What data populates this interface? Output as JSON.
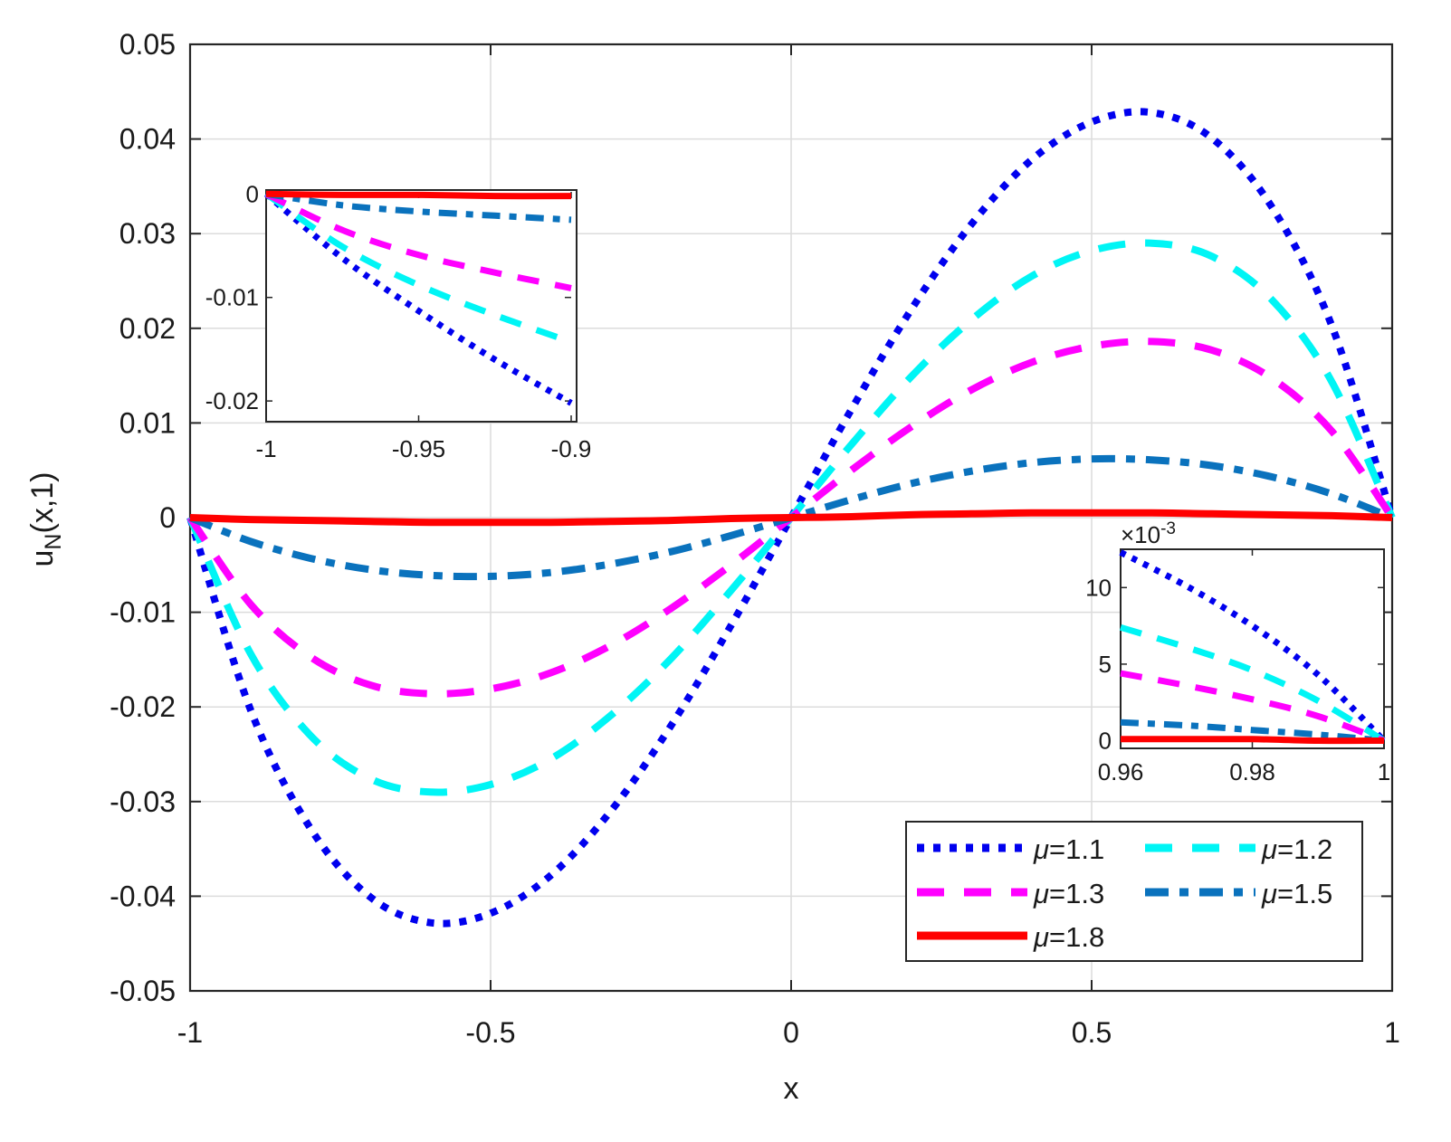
{
  "chart_data": {
    "type": "line",
    "xlabel": "x",
    "ylabel": "u",
    "ylabel_sub": "N",
    "ylabel_rest": "(x,1)",
    "xlim": [
      -1,
      1
    ],
    "ylim": [
      -0.05,
      0.05
    ],
    "x_ticks": [
      -1,
      -0.5,
      0,
      0.5,
      1
    ],
    "x_tick_labels": [
      "-1",
      "-0.5",
      "0",
      "0.5",
      "1"
    ],
    "y_ticks": [
      -0.05,
      -0.04,
      -0.03,
      -0.02,
      -0.01,
      0,
      0.01,
      0.02,
      0.03,
      0.04,
      0.05
    ],
    "y_tick_labels": [
      "-0.05",
      "-0.04",
      "-0.03",
      "-0.02",
      "-0.01",
      "0",
      "0.01",
      "0.02",
      "0.03",
      "0.04",
      "0.05"
    ],
    "grid": true,
    "legend_location": "bottom-right",
    "series": [
      {
        "name": "μ=1.1",
        "greek": "μ",
        "value_label": "=1.1",
        "color": "#0000ee",
        "style": "dotted",
        "x": [
          -1,
          -0.9,
          -0.8,
          -0.7,
          -0.6,
          -0.5,
          -0.4,
          -0.3,
          -0.2,
          -0.1,
          0,
          0.1,
          0.2,
          0.3,
          0.4,
          0.5,
          0.6,
          0.7,
          0.8,
          0.9,
          1
        ],
        "y": [
          0,
          -0.0202,
          -0.0328,
          -0.0401,
          -0.0428,
          -0.0418,
          -0.0378,
          -0.031,
          -0.022,
          -0.0114,
          0,
          0.0114,
          0.022,
          0.031,
          0.0378,
          0.0418,
          0.0428,
          0.0401,
          0.0328,
          0.0202,
          0
        ]
      },
      {
        "name": "μ=1.2",
        "greek": "μ",
        "value_label": "=1.2",
        "color": "#00f5f5",
        "style": "dashed",
        "x": [
          -1,
          -0.9,
          -0.8,
          -0.7,
          -0.6,
          -0.5,
          -0.4,
          -0.3,
          -0.2,
          -0.1,
          0,
          0.1,
          0.2,
          0.3,
          0.4,
          0.5,
          0.6,
          0.7,
          0.8,
          0.9,
          1
        ],
        "y": [
          0,
          -0.0143,
          -0.023,
          -0.0276,
          -0.029,
          -0.0282,
          -0.0255,
          -0.0209,
          -0.0149,
          -0.0077,
          0,
          0.0077,
          0.0149,
          0.0209,
          0.0255,
          0.0282,
          0.029,
          0.0276,
          0.023,
          0.0143,
          0
        ]
      },
      {
        "name": "μ=1.3",
        "greek": "μ",
        "value_label": "=1.3",
        "color": "#ff00ff",
        "style": "dashed",
        "x": [
          -1,
          -0.9,
          -0.8,
          -0.7,
          -0.6,
          -0.5,
          -0.4,
          -0.3,
          -0.2,
          -0.1,
          0,
          0.1,
          0.2,
          0.3,
          0.4,
          0.5,
          0.6,
          0.7,
          0.8,
          0.9,
          1
        ],
        "y": [
          0,
          -0.0091,
          -0.0147,
          -0.0177,
          -0.0186,
          -0.0181,
          -0.0164,
          -0.0135,
          -0.0096,
          -0.005,
          0,
          0.005,
          0.0096,
          0.0135,
          0.0164,
          0.0181,
          0.0186,
          0.0177,
          0.0147,
          0.0091,
          0
        ]
      },
      {
        "name": "μ=1.5",
        "greek": "μ",
        "value_label": "=1.5",
        "color": "#0a72bd",
        "style": "dashdot",
        "x": [
          -1,
          -0.9,
          -0.8,
          -0.7,
          -0.6,
          -0.5,
          -0.4,
          -0.3,
          -0.2,
          -0.1,
          0,
          0.1,
          0.2,
          0.3,
          0.4,
          0.5,
          0.6,
          0.7,
          0.8,
          0.9,
          1
        ],
        "y": [
          0,
          -0.0025,
          -0.0043,
          -0.0055,
          -0.0061,
          -0.0062,
          -0.0058,
          -0.0049,
          -0.0036,
          -0.0019,
          0,
          0.0019,
          0.0036,
          0.0049,
          0.0058,
          0.0062,
          0.0061,
          0.0055,
          0.0043,
          0.0025,
          0
        ]
      },
      {
        "name": "μ=1.8",
        "greek": "μ",
        "value_label": "=1.8",
        "color": "#ff0000",
        "style": "solid",
        "x": [
          -1,
          -0.9,
          -0.8,
          -0.7,
          -0.6,
          -0.5,
          -0.4,
          -0.3,
          -0.2,
          -0.1,
          0,
          0.1,
          0.2,
          0.3,
          0.4,
          0.5,
          0.6,
          0.7,
          0.8,
          0.9,
          1
        ],
        "y": [
          0,
          -0.0002,
          -0.0003,
          -0.0004,
          -0.0005,
          -0.0005,
          -0.0005,
          -0.0004,
          -0.0003,
          -0.0001,
          0,
          0.0001,
          0.0003,
          0.0004,
          0.0005,
          0.0005,
          0.0005,
          0.0004,
          0.0003,
          0.0002,
          0
        ]
      }
    ],
    "insets": [
      {
        "id": "left",
        "xlim": [
          -1,
          -0.9
        ],
        "ylim": [
          -0.022,
          0.0002
        ],
        "x_ticks": [
          -1,
          -0.95,
          -0.9
        ],
        "x_tick_labels": [
          "-1",
          "-0.95",
          "-0.9"
        ],
        "y_ticks": [
          0,
          -0.01,
          -0.02
        ],
        "y_tick_labels": [
          "0",
          "-0.01",
          "-0.02"
        ],
        "series": [
          {
            "x": [
              -1,
              -0.975,
              -0.95,
              -0.925,
              -0.9
            ],
            "y": [
              0,
              -0.0062,
              -0.0113,
              -0.016,
              -0.0202
            ]
          },
          {
            "x": [
              -1,
              -0.975,
              -0.95,
              -0.925,
              -0.9
            ],
            "y": [
              0,
              -0.0051,
              -0.0088,
              -0.0117,
              -0.0143
            ]
          },
          {
            "x": [
              -1,
              -0.975,
              -0.95,
              -0.925,
              -0.9
            ],
            "y": [
              0,
              -0.0035,
              -0.0059,
              -0.0076,
              -0.0091
            ]
          },
          {
            "x": [
              -1,
              -0.975,
              -0.95,
              -0.925,
              -0.9
            ],
            "y": [
              0,
              -0.0011,
              -0.0017,
              -0.0021,
              -0.0025
            ]
          },
          {
            "x": [
              -1,
              -0.975,
              -0.95,
              -0.925,
              -0.9
            ],
            "y": [
              0,
              -0.0001,
              -0.0001,
              -0.0002,
              -0.0002
            ]
          }
        ]
      },
      {
        "id": "right",
        "xlim": [
          0.96,
          1
        ],
        "ylim": [
          -0.0005,
          0.0125
        ],
        "x_ticks": [
          0.96,
          0.98,
          1
        ],
        "x_tick_labels": [
          "0.96",
          "0.98",
          "1"
        ],
        "y_ticks": [
          0,
          0.005,
          0.01
        ],
        "y_tick_labels": [
          "0",
          "5",
          "10"
        ],
        "exponent_base": "×10",
        "exponent_power": "-3",
        "series": [
          {
            "x": [
              0.96,
              0.97,
              0.98,
              0.99,
              1
            ],
            "y": [
              0.0123,
              0.0101,
              0.0075,
              0.0043,
              0
            ]
          },
          {
            "x": [
              0.96,
              0.97,
              0.98,
              0.99,
              1
            ],
            "y": [
              0.0074,
              0.0061,
              0.0046,
              0.0026,
              0
            ]
          },
          {
            "x": [
              0.96,
              0.97,
              0.98,
              0.99,
              1
            ],
            "y": [
              0.0044,
              0.0036,
              0.0027,
              0.0016,
              0
            ]
          },
          {
            "x": [
              0.96,
              0.97,
              0.98,
              0.99,
              1
            ],
            "y": [
              0.0012,
              0.001,
              0.0007,
              0.0004,
              0
            ]
          },
          {
            "x": [
              0.96,
              0.97,
              0.98,
              0.99,
              1
            ],
            "y": [
              0.0001,
              0.0001,
              0.0001,
              0,
              0
            ]
          }
        ]
      }
    ]
  }
}
